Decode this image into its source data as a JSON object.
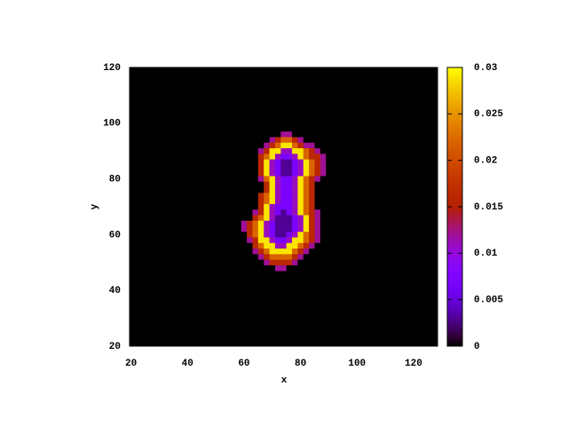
{
  "chart_data": {
    "type": "heatmap",
    "xlabel": "x",
    "ylabel": "y",
    "xlim": [
      19.5,
      128.5
    ],
    "ylim": [
      20,
      120
    ],
    "xticks": [
      20,
      40,
      60,
      80,
      100,
      120
    ],
    "yticks": [
      20,
      40,
      60,
      80,
      100,
      120
    ],
    "cblim": [
      0,
      0.03
    ],
    "cbticks": [
      0,
      0.005,
      0.01,
      0.015,
      0.02,
      0.025,
      0.03
    ],
    "background": "#000000",
    "x": [
      60,
      62,
      64,
      66,
      68,
      70,
      72,
      74,
      76,
      78,
      80,
      82,
      84,
      86,
      88,
      90
    ],
    "y": [
      96,
      94,
      92,
      90,
      88,
      86,
      84,
      82,
      80,
      78,
      76,
      74,
      72,
      70,
      68,
      66,
      64,
      62,
      60,
      58,
      56,
      54,
      52,
      50,
      48
    ],
    "z": [
      [
        0,
        0,
        0,
        0,
        0,
        0,
        0,
        0.012,
        0.012,
        0,
        0,
        0,
        0,
        0,
        0,
        0
      ],
      [
        0,
        0,
        0,
        0,
        0,
        0.012,
        0.016,
        0.022,
        0.022,
        0.016,
        0.012,
        0,
        0,
        0,
        0,
        0
      ],
      [
        0,
        0,
        0,
        0,
        0.012,
        0.016,
        0.022,
        0.029,
        0.029,
        0.022,
        0.016,
        0.012,
        0.012,
        0,
        0,
        0
      ],
      [
        0,
        0,
        0,
        0.012,
        0.016,
        0.029,
        0.029,
        0.011,
        0.011,
        0.029,
        0.029,
        0.022,
        0.016,
        0.012,
        0,
        0
      ],
      [
        0,
        0,
        0,
        0.016,
        0.022,
        0.029,
        0.011,
        0.007,
        0.007,
        0.011,
        0.029,
        0.022,
        0.016,
        0.016,
        0.012,
        0
      ],
      [
        0,
        0,
        0,
        0.016,
        0.029,
        0.011,
        0.007,
        0.003,
        0.003,
        0.007,
        0.011,
        0.029,
        0.022,
        0.016,
        0.012,
        0
      ],
      [
        0,
        0,
        0,
        0.016,
        0.029,
        0.011,
        0.007,
        0.003,
        0.003,
        0.007,
        0.011,
        0.029,
        0.022,
        0.016,
        0.012,
        0
      ],
      [
        0,
        0,
        0,
        0.016,
        0.029,
        0.011,
        0.007,
        0.003,
        0.003,
        0.007,
        0.011,
        0.029,
        0.022,
        0.016,
        0.012,
        0
      ],
      [
        0,
        0,
        0,
        0.012,
        0.022,
        0.029,
        0.011,
        0.007,
        0.007,
        0.011,
        0.029,
        0.022,
        0.016,
        0.012,
        0,
        0
      ],
      [
        0,
        0,
        0,
        0,
        0.016,
        0.029,
        0.011,
        0.007,
        0.007,
        0.011,
        0.029,
        0.022,
        0.016,
        0,
        0,
        0
      ],
      [
        0,
        0,
        0,
        0,
        0.016,
        0.029,
        0.011,
        0.007,
        0.007,
        0.011,
        0.029,
        0.022,
        0.016,
        0,
        0,
        0
      ],
      [
        0,
        0,
        0,
        0.016,
        0.022,
        0.029,
        0.011,
        0.007,
        0.007,
        0.011,
        0.029,
        0.022,
        0.016,
        0,
        0,
        0
      ],
      [
        0,
        0,
        0,
        0.016,
        0.022,
        0.029,
        0.011,
        0.007,
        0.007,
        0.011,
        0.029,
        0.022,
        0.016,
        0,
        0,
        0
      ],
      [
        0,
        0,
        0,
        0.016,
        0.029,
        0.011,
        0.007,
        0.007,
        0.007,
        0.011,
        0.029,
        0.022,
        0.016,
        0,
        0,
        0
      ],
      [
        0,
        0,
        0.012,
        0.016,
        0.029,
        0.011,
        0.007,
        0.003,
        0.007,
        0.011,
        0.029,
        0.022,
        0.016,
        0.012,
        0,
        0
      ],
      [
        0,
        0,
        0.016,
        0.022,
        0.029,
        0.011,
        0.003,
        0.003,
        0.003,
        0.007,
        0.011,
        0.029,
        0.016,
        0.012,
        0,
        0
      ],
      [
        0.012,
        0.016,
        0.022,
        0.029,
        0.011,
        0.007,
        0.003,
        0.003,
        0.003,
        0.007,
        0.011,
        0.029,
        0.016,
        0.012,
        0,
        0
      ],
      [
        0.012,
        0.016,
        0.022,
        0.029,
        0.011,
        0.007,
        0.003,
        0.003,
        0.003,
        0.007,
        0.011,
        0.029,
        0.016,
        0.012,
        0,
        0
      ],
      [
        0,
        0.016,
        0.022,
        0.029,
        0.011,
        0.007,
        0.003,
        0.003,
        0.007,
        0.011,
        0.029,
        0.022,
        0.016,
        0.012,
        0,
        0
      ],
      [
        0,
        0.012,
        0.016,
        0.029,
        0.029,
        0.011,
        0.007,
        0.007,
        0.011,
        0.029,
        0.029,
        0.022,
        0.016,
        0.012,
        0,
        0
      ],
      [
        0,
        0,
        0.016,
        0.022,
        0.029,
        0.029,
        0.011,
        0.011,
        0.029,
        0.029,
        0.022,
        0.016,
        0.012,
        0,
        0,
        0
      ],
      [
        0,
        0,
        0.012,
        0.016,
        0.022,
        0.029,
        0.029,
        0.029,
        0.029,
        0.022,
        0.016,
        0.012,
        0,
        0,
        0,
        0
      ],
      [
        0,
        0,
        0,
        0.012,
        0.016,
        0.022,
        0.022,
        0.022,
        0.022,
        0.016,
        0.012,
        0,
        0,
        0,
        0,
        0
      ],
      [
        0,
        0,
        0,
        0,
        0.012,
        0.016,
        0.016,
        0.016,
        0.016,
        0.012,
        0,
        0,
        0,
        0,
        0,
        0
      ],
      [
        0,
        0,
        0,
        0,
        0,
        0,
        0.012,
        0.012,
        0,
        0,
        0,
        0,
        0,
        0,
        0,
        0
      ]
    ]
  }
}
